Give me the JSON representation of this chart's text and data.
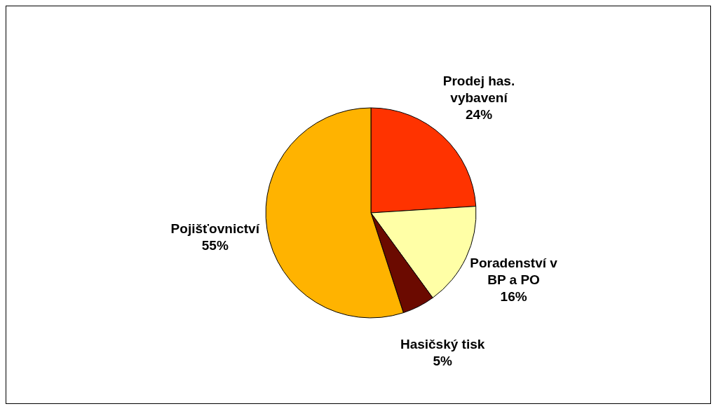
{
  "chart_data": {
    "type": "pie",
    "categories": [
      "Prodej has. vybavení",
      "Poradenství v BP a PO",
      "Hasičský tisk",
      "Pojišťovnictví"
    ],
    "values": [
      24,
      16,
      5,
      55
    ],
    "colors": [
      "#ff3300",
      "#ffffa6",
      "#6b0a00",
      "#ffb300"
    ],
    "value_labels": [
      "24%",
      "16%",
      "5%",
      "55%"
    ],
    "legend": false
  }
}
